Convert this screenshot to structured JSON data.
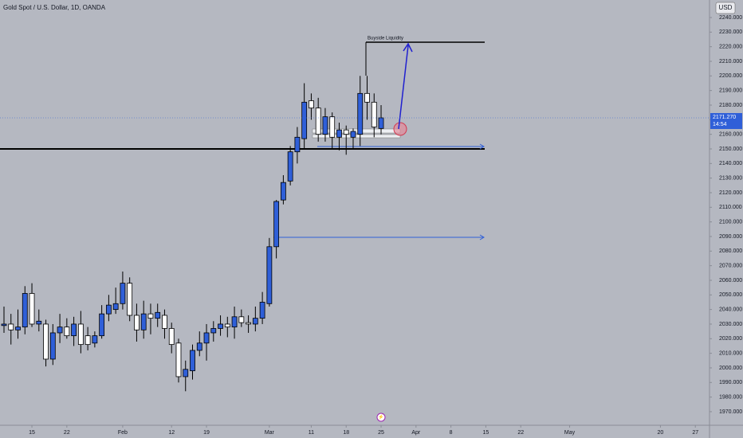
{
  "chart_data": {
    "type": "candlestick",
    "title": "Gold Spot / U.S. Dollar, 1D, OANDA",
    "currency": "USD",
    "annotation": "Buyside Liquidity",
    "up_color": "#2f5fd8",
    "down_color": "#ffffff",
    "x": [
      -4,
      -3,
      -2,
      -1,
      0,
      1,
      2,
      3,
      4,
      5,
      6,
      7,
      8,
      9,
      10,
      11,
      12,
      13,
      14,
      15,
      16,
      17,
      18,
      19,
      20,
      21,
      22,
      23,
      24,
      25,
      26,
      27,
      28,
      29,
      30,
      31,
      32,
      33,
      34,
      35,
      36,
      37,
      38,
      39,
      40,
      41,
      42,
      43,
      44,
      45,
      46,
      47,
      48,
      49,
      50
    ],
    "open": [
      2029,
      2030,
      2026,
      2028,
      2051,
      2030,
      2030,
      2006,
      2024,
      2028,
      2022,
      2030,
      2022,
      2017,
      2022,
      2037,
      2040,
      2044,
      2058,
      2036,
      2026,
      2037,
      2034,
      2036,
      2027,
      2017,
      1994,
      1998,
      2012,
      2017,
      2024,
      2027,
      2030,
      2028,
      2035,
      2031,
      2030,
      2034,
      2044,
      2083,
      2115,
      2128,
      2148,
      2157,
      2183,
      2178,
      2160,
      2172,
      2158,
      2163,
      2158,
      2160,
      2188,
      2182,
      2164
    ],
    "high": [
      2042,
      2037,
      2040,
      2056,
      2058,
      2040,
      2033,
      2030,
      2037,
      2034,
      2035,
      2039,
      2028,
      2025,
      2043,
      2050,
      2055,
      2066,
      2062,
      2044,
      2046,
      2044,
      2044,
      2040,
      2031,
      2020,
      2005,
      2016,
      2025,
      2030,
      2032,
      2036,
      2035,
      2042,
      2040,
      2036,
      2042,
      2052,
      2089,
      2115,
      2132,
      2152,
      2165,
      2195,
      2188,
      2185,
      2178,
      2175,
      2168,
      2166,
      2164,
      2200,
      2200,
      2188,
      2180
    ],
    "low": [
      2024,
      2016,
      2020,
      2023,
      2028,
      2025,
      2001,
      2002,
      2017,
      2020,
      2015,
      2010,
      2012,
      2014,
      2020,
      2032,
      2037,
      2040,
      2032,
      2018,
      2020,
      2023,
      2028,
      2020,
      2010,
      1990,
      1984,
      1992,
      2008,
      2005,
      2018,
      2022,
      2021,
      2020,
      2028,
      2024,
      2025,
      2030,
      2042,
      2075,
      2112,
      2125,
      2140,
      2150,
      2170,
      2155,
      2155,
      2150,
      2149,
      2146,
      2150,
      2152,
      2170,
      2158,
      2160
    ],
    "close": [
      2030,
      2026,
      2028,
      2051,
      2030,
      2032,
      2006,
      2024,
      2028,
      2022,
      2030,
      2016,
      2016,
      2022,
      2037,
      2043,
      2044,
      2058,
      2036,
      2026,
      2037,
      2034,
      2038,
      2027,
      2016,
      1994,
      1999,
      2012,
      2017,
      2024,
      2027,
      2030,
      2028,
      2035,
      2031,
      2030,
      2034,
      2045,
      2083,
      2114,
      2127,
      2148,
      2158,
      2182,
      2178,
      2160,
      2172,
      2158,
      2163,
      2160,
      2162,
      2188,
      2182,
      2165,
      2171.27
    ],
    "last_price": {
      "value": 2171.27,
      "label": "2171.270"
    },
    "countdown": "14:54",
    "xlim": [
      -4.57,
      97.03
    ],
    "xticks": [
      {
        "value": 0,
        "label": "15"
      },
      {
        "value": 5,
        "label": "22"
      },
      {
        "value": 13,
        "label": "Feb"
      },
      {
        "value": 20,
        "label": "12"
      },
      {
        "value": 25,
        "label": "19"
      },
      {
        "value": 34,
        "label": "Mar"
      },
      {
        "value": 40,
        "label": "11"
      },
      {
        "value": 45,
        "label": "18"
      },
      {
        "value": 50,
        "label": "25"
      },
      {
        "value": 55,
        "label": "Apr"
      },
      {
        "value": 60,
        "label": "8"
      },
      {
        "value": 65,
        "label": "15"
      },
      {
        "value": 70,
        "label": "22"
      },
      {
        "value": 77,
        "label": "May"
      },
      {
        "value": 90,
        "label": "20"
      },
      {
        "value": 95,
        "label": "27"
      }
    ],
    "ylim": [
      1960.7,
      2252
    ],
    "yticks": [
      {
        "value": 1970,
        "label": "1970.000"
      },
      {
        "value": 1980,
        "label": "1980.000"
      },
      {
        "value": 1990,
        "label": "1990.000"
      },
      {
        "value": 2000,
        "label": "2000.000"
      },
      {
        "value": 2010,
        "label": "2010.000"
      },
      {
        "value": 2020,
        "label": "2020.000"
      },
      {
        "value": 2030,
        "label": "2030.000"
      },
      {
        "value": 2040,
        "label": "2040.000"
      },
      {
        "value": 2050,
        "label": "2050.000"
      },
      {
        "value": 2060,
        "label": "2060.000"
      },
      {
        "value": 2070,
        "label": "2070.000"
      },
      {
        "value": 2080,
        "label": "2080.000"
      },
      {
        "value": 2090,
        "label": "2090.000"
      },
      {
        "value": 2100,
        "label": "2100.000"
      },
      {
        "value": 2110,
        "label": "2110.000"
      },
      {
        "value": 2120,
        "label": "2120.000"
      },
      {
        "value": 2130,
        "label": "2130.000"
      },
      {
        "value": 2140,
        "label": "2140.000"
      },
      {
        "value": 2150,
        "label": "2150.000"
      },
      {
        "value": 2160,
        "label": "2160.000"
      },
      {
        "value": 2170,
        "label": "2170.000"
      },
      {
        "value": 2180,
        "label": "2180.000"
      },
      {
        "value": 2190,
        "label": "2190.000"
      },
      {
        "value": 2200,
        "label": "2200.000"
      },
      {
        "value": 2210,
        "label": "2210.000"
      },
      {
        "value": 2220,
        "label": "2220.000"
      },
      {
        "value": 2230,
        "label": "2230.000"
      },
      {
        "value": 2240,
        "label": "2240.000"
      }
    ]
  }
}
